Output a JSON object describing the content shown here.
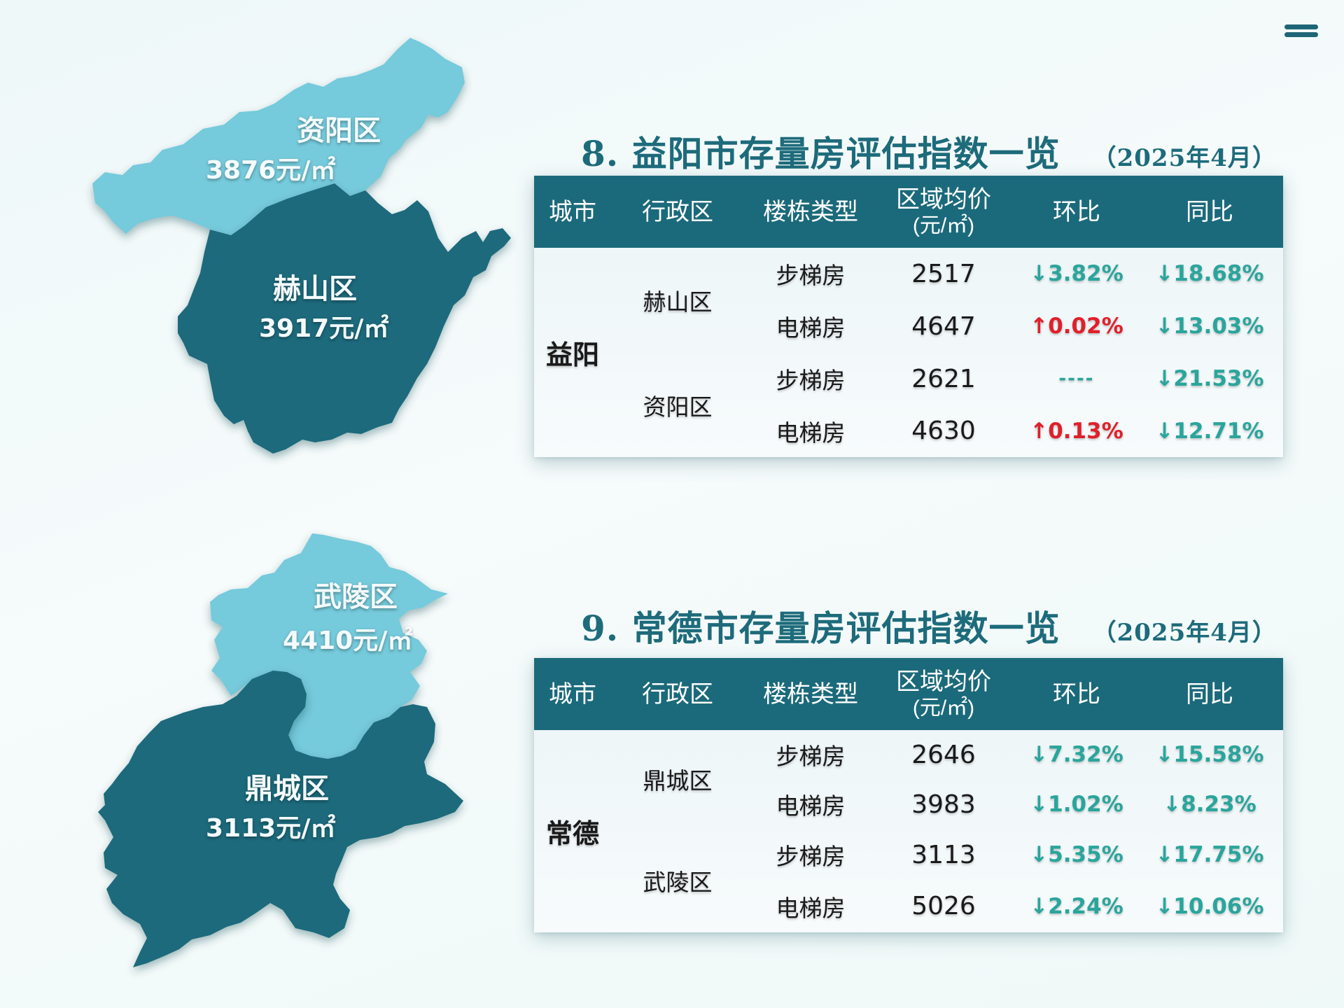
{
  "map1": {
    "ziyang": {
      "name": "资阳区",
      "price": "3876元/㎡"
    },
    "heshan": {
      "name": "赫山区",
      "price": "3917元/㎡"
    }
  },
  "map2": {
    "wuling": {
      "name": "武陵区",
      "price": "4410元/㎡"
    },
    "dingcheng": {
      "name": "鼎城区",
      "price": "3113元/㎡"
    }
  },
  "colors": {
    "dark": "#1b6a7b",
    "light": "#72c9da",
    "down": "#2aa59c",
    "up": "#e0202a",
    "title": "#1d6b7b"
  },
  "headers": {
    "city": "城市",
    "district": "行政区",
    "type": "楼栋类型",
    "price": "区域均价",
    "price_unit": "(元/㎡)",
    "mom": "环比",
    "yoy": "同比"
  },
  "table1": {
    "title": "8. 益阳市存量房评估指数一览",
    "date": "（2025年4月）",
    "city": "益阳",
    "districts": [
      "赫山区",
      "资阳区"
    ],
    "rows": [
      {
        "type": "步梯房",
        "price": "2517",
        "mom": "↓3.82%",
        "yoy": "↓18.68%"
      },
      {
        "type": "电梯房",
        "price": "4647",
        "mom": "↑0.02%",
        "yoy": "↓13.03%"
      },
      {
        "type": "步梯房",
        "price": "2621",
        "mom": "----",
        "yoy": "↓21.53%"
      },
      {
        "type": "电梯房",
        "price": "4630",
        "mom": "↑0.13%",
        "yoy": "↓12.71%"
      }
    ]
  },
  "table2": {
    "title": "9. 常德市存量房评估指数一览",
    "date": "（2025年4月）",
    "city": "常德",
    "districts": [
      "鼎城区",
      "武陵区"
    ],
    "rows": [
      {
        "type": "步梯房",
        "price": "2646",
        "mom": "↓7.32%",
        "yoy": "↓15.58%"
      },
      {
        "type": "电梯房",
        "price": "3983",
        "mom": "↓1.02%",
        "yoy": "↓8.23%"
      },
      {
        "type": "步梯房",
        "price": "3113",
        "mom": "↓5.35%",
        "yoy": "↓17.75%"
      },
      {
        "type": "电梯房",
        "price": "5026",
        "mom": "↓2.24%",
        "yoy": "↓10.06%"
      }
    ]
  }
}
